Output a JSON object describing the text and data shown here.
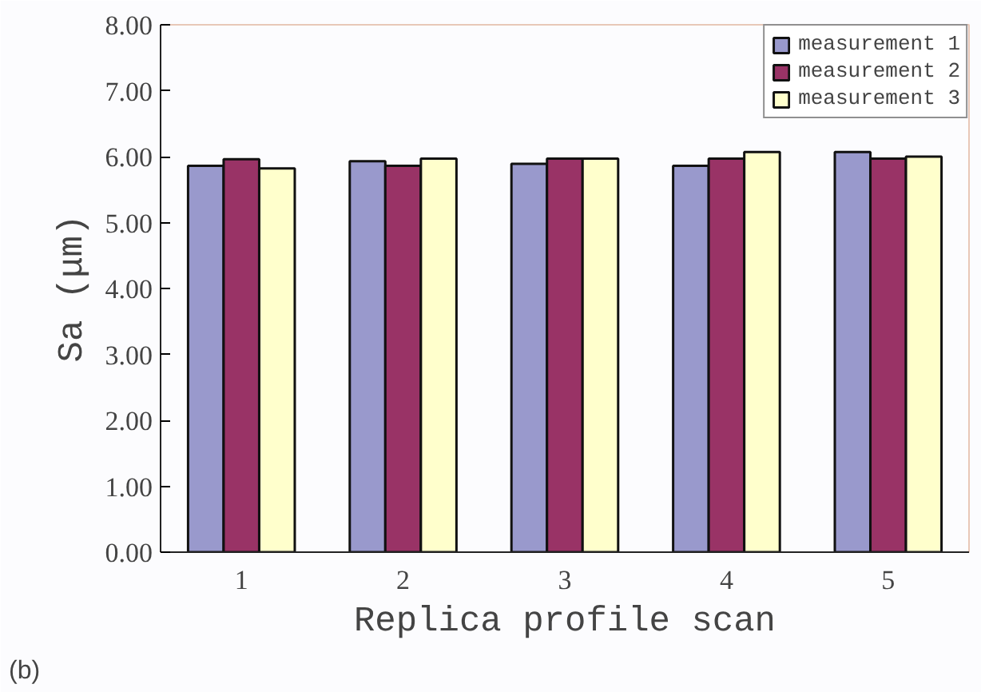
{
  "chart_data": {
    "type": "bar",
    "xlabel": "Replica profile scan",
    "ylabel": "Sa (μm)",
    "categories": [
      "1",
      "2",
      "3",
      "4",
      "5"
    ],
    "series": [
      {
        "name": "measurement 1",
        "color": "#9999cc",
        "values": [
          5.86,
          5.93,
          5.89,
          5.86,
          6.07
        ]
      },
      {
        "name": "measurement 2",
        "color": "#993366",
        "values": [
          5.96,
          5.86,
          5.97,
          5.97,
          5.97
        ]
      },
      {
        "name": "measurement 3",
        "color": "#ffffcc",
        "values": [
          5.82,
          5.97,
          5.97,
          6.07,
          6.0
        ]
      }
    ],
    "ylim": [
      0,
      8
    ],
    "yticks": [
      {
        "value": 0,
        "label": "0.00"
      },
      {
        "value": 1,
        "label": "1.00"
      },
      {
        "value": 2,
        "label": "2.00"
      },
      {
        "value": 3,
        "label": "3.00"
      },
      {
        "value": 4,
        "label": "4.00"
      },
      {
        "value": 5,
        "label": "5.00"
      },
      {
        "value": 6,
        "label": "6.00"
      },
      {
        "value": 7,
        "label": "7.00"
      },
      {
        "value": 8,
        "label": "8.00"
      }
    ],
    "grid": false,
    "legend": "top right",
    "annotations": [
      "(b)"
    ]
  }
}
